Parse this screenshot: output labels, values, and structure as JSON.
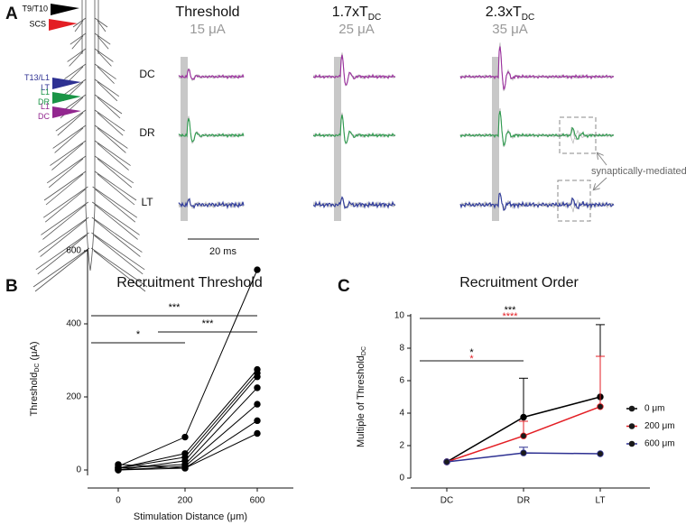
{
  "panel_labels": [
    "A",
    "B",
    "C"
  ],
  "panel_a": {
    "electrodes": [
      {
        "lines": [
          "T9/T10"
        ],
        "color": "#000000",
        "text_color": "#000000"
      },
      {
        "lines": [
          "SCS"
        ],
        "color": "#e31e24",
        "text_color": "#000000"
      },
      {
        "lines": [
          "T13/L1",
          "LT"
        ],
        "color": "#2e3192",
        "text_color": "#2e3192"
      },
      {
        "lines": [
          "L1",
          "DR"
        ],
        "color": "#1a9446",
        "text_color": "#1a9446"
      },
      {
        "lines": [
          "L1",
          "DC"
        ],
        "color": "#92278f",
        "text_color": "#92278f"
      }
    ],
    "conditions": [
      {
        "title": "Threshold",
        "intensity": "15 μA"
      },
      {
        "title": "1.7xT",
        "title_sub": "DC",
        "intensity": "25 μA"
      },
      {
        "title": "2.3xT",
        "title_sub": "DC",
        "intensity": "35 μA"
      }
    ],
    "rows": [
      {
        "label": "DC",
        "color": "#9b2f9e"
      },
      {
        "label": "DR",
        "color": "#2e9b4e"
      },
      {
        "label": "LT",
        "color": "#2e3a9b"
      }
    ],
    "annotation": "synaptically-mediated",
    "scale_bar": "20 ms"
  },
  "chart_data": [
    {
      "type": "line",
      "title": "Recruitment Threshold",
      "y_label": {
        "main": "Threshold",
        "sub": "DC",
        "tail": " (μA)"
      },
      "x_label": "Stimulation Distance (μm)",
      "categories": [
        "0",
        "200",
        "600"
      ],
      "ylim": [
        0,
        600
      ],
      "yticks": [
        0,
        200,
        400,
        600
      ],
      "color": "#000000",
      "series": [
        {
          "values": [
            10,
            90,
            548
          ]
        },
        {
          "values": [
            5,
            45,
            275
          ]
        },
        {
          "values": [
            5,
            35,
            265
          ]
        },
        {
          "values": [
            0,
            25,
            255
          ]
        },
        {
          "values": [
            5,
            15,
            225
          ]
        },
        {
          "values": [
            0,
            10,
            180
          ]
        },
        {
          "values": [
            15,
            5,
            135
          ]
        },
        {
          "values": [
            0,
            5,
            100
          ]
        }
      ],
      "significance": [
        {
          "labels": [
            {
              "text": "***",
              "color": "#000000"
            }
          ],
          "from": 0,
          "to": 2
        },
        {
          "labels": [
            {
              "text": "***",
              "color": "#000000"
            }
          ],
          "from": 1,
          "to": 2
        },
        {
          "labels": [
            {
              "text": "*",
              "color": "#000000"
            }
          ],
          "from": 0,
          "to": 1
        }
      ]
    },
    {
      "type": "line",
      "title": "Recruitment Order",
      "y_label": {
        "main": "Multiple of Threshold",
        "sub": "DC"
      },
      "categories": [
        "DC",
        "DR",
        "LT"
      ],
      "ylim": [
        0,
        10
      ],
      "yticks": [
        0,
        2,
        4,
        6,
        8,
        10
      ],
      "legend": "right",
      "series": [
        {
          "name": "0 μm",
          "color": "#000000",
          "values": [
            1,
            3.75,
            5
          ],
          "errors": [
            0,
            2.4,
            4.45
          ]
        },
        {
          "name": "200 μm",
          "color": "#e31e24",
          "values": [
            1,
            2.6,
            4.4
          ],
          "errors": [
            0,
            0.9,
            3.1
          ]
        },
        {
          "name": "600 μm",
          "color": "#2e3192",
          "values": [
            1,
            1.55,
            1.5
          ],
          "errors": [
            0,
            0.35,
            0
          ]
        }
      ],
      "significance": [
        {
          "labels": [
            {
              "text": "***",
              "color": "#000000"
            },
            {
              "text": "****",
              "color": "#e31e24"
            }
          ],
          "from": 0,
          "to": 2
        },
        {
          "labels": [
            {
              "text": "*",
              "color": "#000000"
            },
            {
              "text": "*",
              "color": "#e31e24"
            }
          ],
          "from": 0,
          "to": 1
        }
      ]
    }
  ]
}
